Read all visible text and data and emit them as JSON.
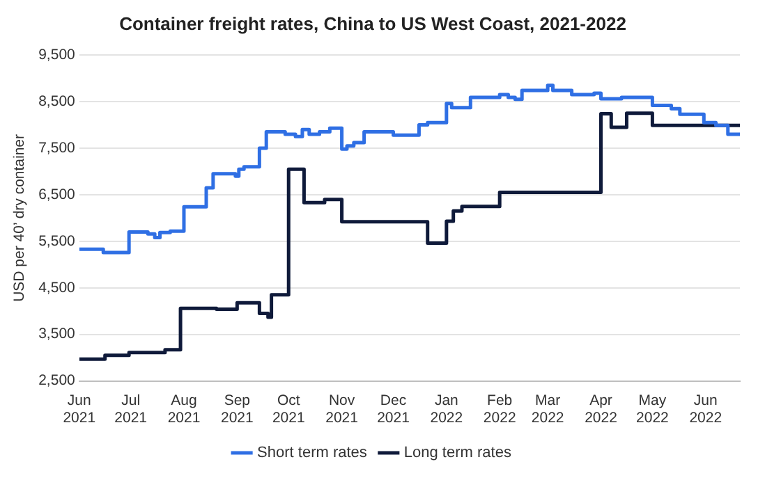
{
  "chart_data": {
    "type": "step",
    "title": "Container freight rates, China to US West Coast, 2021-2022",
    "ylabel": "USD per 40’ dry container",
    "xlim": [
      "2021-06-01",
      "2022-06-21"
    ],
    "xticks": [
      {
        "value": "2021-06-01",
        "label": "Jun 2021"
      },
      {
        "value": "2021-07-01",
        "label": "Jul 2021"
      },
      {
        "value": "2021-08-01",
        "label": "Aug 2021"
      },
      {
        "value": "2021-09-01",
        "label": "Sep 2021"
      },
      {
        "value": "2021-10-01",
        "label": "Oct 2021"
      },
      {
        "value": "2021-11-01",
        "label": "Nov 2021"
      },
      {
        "value": "2021-12-01",
        "label": "Dec 2021"
      },
      {
        "value": "2022-01-01",
        "label": "Jan 2022"
      },
      {
        "value": "2022-02-01",
        "label": "Feb 2022"
      },
      {
        "value": "2022-03-01",
        "label": "Mar 2022"
      },
      {
        "value": "2022-04-01",
        "label": "Apr 2022"
      },
      {
        "value": "2022-05-01",
        "label": "May 2022"
      },
      {
        "value": "2022-06-01",
        "label": "Jun 2022"
      }
    ],
    "ylim": [
      2500,
      9500
    ],
    "yticks": [
      {
        "value": 2500,
        "label": "2,500"
      },
      {
        "value": 3500,
        "label": "3,500"
      },
      {
        "value": 4500,
        "label": "4,500"
      },
      {
        "value": 5500,
        "label": "5,500"
      },
      {
        "value": 6500,
        "label": "6,500"
      },
      {
        "value": 7500,
        "label": "7,500"
      },
      {
        "value": 8500,
        "label": "8,500"
      },
      {
        "value": 9500,
        "label": "9,500"
      }
    ],
    "grid": "y",
    "legend": "bottom",
    "marker": "none",
    "line_style": "solid",
    "series": [
      {
        "name": "Short term rates",
        "color": "#2f6fe4",
        "x": [
          "2021-06-01",
          "2021-06-15",
          "2021-06-30",
          "2021-07-11",
          "2021-07-15",
          "2021-07-18",
          "2021-07-24",
          "2021-08-01",
          "2021-08-14",
          "2021-08-18",
          "2021-08-31",
          "2021-09-02",
          "2021-09-05",
          "2021-09-14",
          "2021-09-18",
          "2021-09-29",
          "2021-10-05",
          "2021-10-09",
          "2021-10-13",
          "2021-10-19",
          "2021-10-25",
          "2021-11-01",
          "2021-11-04",
          "2021-11-08",
          "2021-11-14",
          "2021-12-01",
          "2021-12-16",
          "2021-12-21",
          "2022-01-01",
          "2022-01-04",
          "2022-01-15",
          "2022-02-01",
          "2022-02-06",
          "2022-02-10",
          "2022-02-14",
          "2022-03-01",
          "2022-03-04",
          "2022-03-15",
          "2022-03-28",
          "2022-04-01",
          "2022-04-13",
          "2022-05-01",
          "2022-05-12",
          "2022-05-17",
          "2022-05-31",
          "2022-06-07",
          "2022-06-14",
          "2022-06-21"
        ],
        "values": [
          5330,
          5260,
          5700,
          5660,
          5580,
          5690,
          5720,
          6240,
          6650,
          6950,
          6900,
          7050,
          7100,
          7500,
          7850,
          7800,
          7750,
          7900,
          7800,
          7850,
          7930,
          7480,
          7550,
          7620,
          7850,
          7780,
          8000,
          8050,
          8460,
          8370,
          8590,
          8650,
          8590,
          8550,
          8740,
          8850,
          8740,
          8650,
          8680,
          8560,
          8590,
          8420,
          8350,
          8230,
          8050,
          7990,
          7800,
          7800
        ]
      },
      {
        "name": "Long term rates",
        "color": "#0f1a3a",
        "x": [
          "2021-06-01",
          "2021-06-16",
          "2021-06-30",
          "2021-07-21",
          "2021-07-30",
          "2021-08-20",
          "2021-09-01",
          "2021-09-14",
          "2021-09-19",
          "2021-09-21",
          "2021-10-01",
          "2021-10-10",
          "2021-10-22",
          "2021-11-01",
          "2021-12-21",
          "2022-01-01",
          "2022-01-05",
          "2022-01-10",
          "2022-02-01",
          "2022-04-01",
          "2022-04-07",
          "2022-04-16",
          "2022-05-01",
          "2022-06-21"
        ],
        "values": [
          2970,
          3050,
          3110,
          3170,
          4060,
          4040,
          4180,
          3950,
          3870,
          4350,
          7050,
          6330,
          6400,
          5920,
          5460,
          5930,
          6150,
          6250,
          6550,
          8240,
          7950,
          8250,
          7990,
          7990
        ]
      }
    ]
  }
}
